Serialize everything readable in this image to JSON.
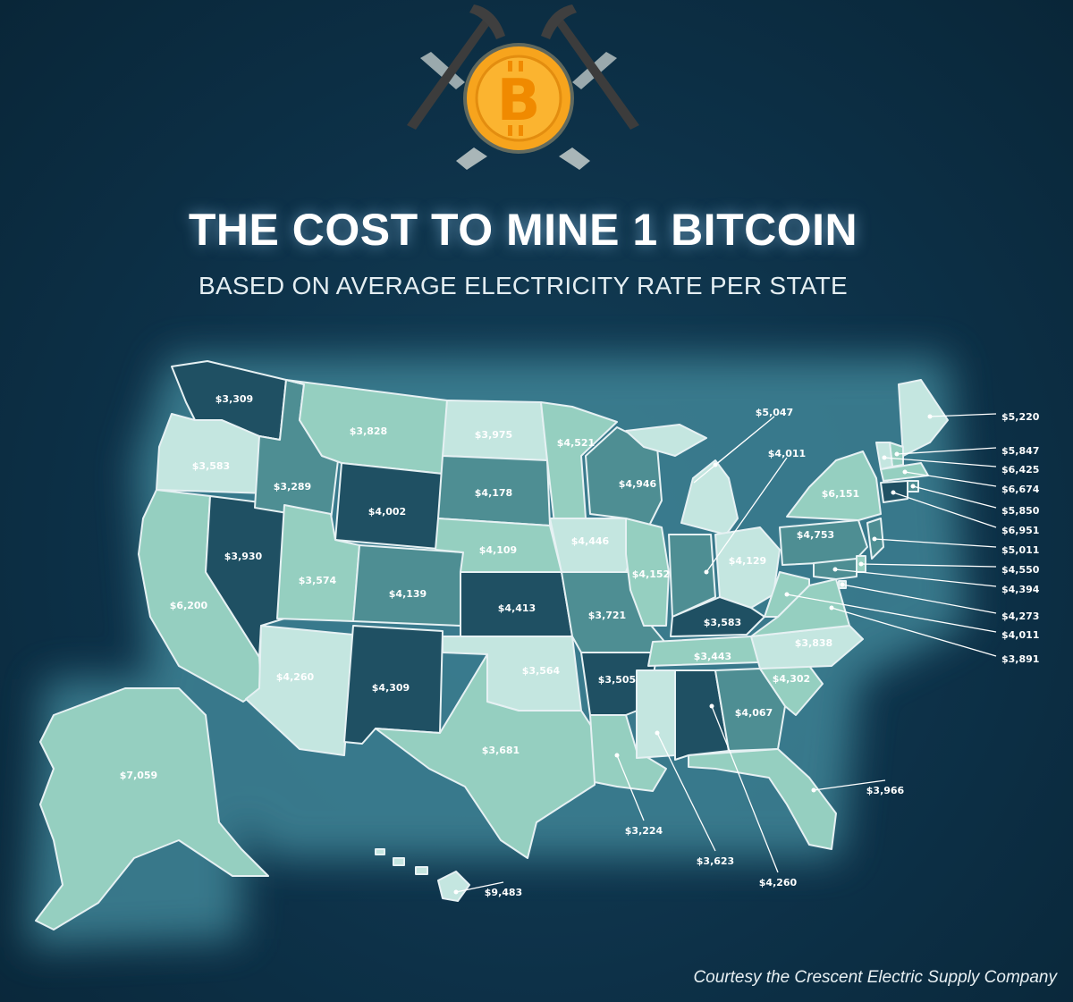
{
  "title": "THE COST TO MINE 1 BITCOIN",
  "subtitle": "BASED ON AVERAGE ELECTRICITY RATE PER STATE",
  "credit": "Courtesy the Crescent Electric Supply Company",
  "colors": {
    "background": "#0d3148",
    "glow": "#3f8597",
    "dark": "#1f5063",
    "medium": "#4e8e93",
    "light": "#95cfc0",
    "lightest": "#c4e6e0",
    "coin": "#f7a41d"
  },
  "icons": [
    "bitcoin-coin-icon",
    "pickaxe-icon"
  ],
  "states": [
    {
      "id": "WA",
      "value": "$3,309"
    },
    {
      "id": "OR",
      "value": "$3,583"
    },
    {
      "id": "CA",
      "value": "$6,200"
    },
    {
      "id": "NV",
      "value": "$3,930"
    },
    {
      "id": "ID",
      "value": "$3,289"
    },
    {
      "id": "MT",
      "value": "$3,828"
    },
    {
      "id": "WY",
      "value": "$4,002"
    },
    {
      "id": "UT",
      "value": "$3,574"
    },
    {
      "id": "AZ",
      "value": "$4,260"
    },
    {
      "id": "CO",
      "value": "$4,139"
    },
    {
      "id": "NM",
      "value": "$4,309"
    },
    {
      "id": "ND",
      "value": "$3,975"
    },
    {
      "id": "SD",
      "value": "$4,178"
    },
    {
      "id": "NE",
      "value": "$4,109"
    },
    {
      "id": "KS",
      "value": "$4,413"
    },
    {
      "id": "OK",
      "value": "$3,564"
    },
    {
      "id": "TX",
      "value": "$3,681"
    },
    {
      "id": "MN",
      "value": "$4,521"
    },
    {
      "id": "IA",
      "value": "$4,446"
    },
    {
      "id": "MO",
      "value": "$3,721"
    },
    {
      "id": "AR",
      "value": "$3,505"
    },
    {
      "id": "LA",
      "value": "$3,224"
    },
    {
      "id": "WI",
      "value": "$4,946"
    },
    {
      "id": "IL",
      "value": "$4,152"
    },
    {
      "id": "MI",
      "value": "$5,047"
    },
    {
      "id": "IN",
      "value": "$4,011"
    },
    {
      "id": "OH",
      "value": "$4,129"
    },
    {
      "id": "KY",
      "value": "$3,583"
    },
    {
      "id": "TN",
      "value": "$3,443"
    },
    {
      "id": "MS",
      "value": "$3,623"
    },
    {
      "id": "AL",
      "value": "$4,260"
    },
    {
      "id": "GA",
      "value": "$4,067"
    },
    {
      "id": "FL",
      "value": "$3,966"
    },
    {
      "id": "SC",
      "value": "$4,302"
    },
    {
      "id": "NC",
      "value": "$3,838"
    },
    {
      "id": "VA",
      "value": "$3,891"
    },
    {
      "id": "WV",
      "value": "$4,011"
    },
    {
      "id": "PA",
      "value": "$4,753"
    },
    {
      "id": "NY",
      "value": "$6,151"
    },
    {
      "id": "ME",
      "value": "$5,220"
    },
    {
      "id": "NH",
      "value": "$5,847"
    },
    {
      "id": "VT",
      "value": "$6,425"
    },
    {
      "id": "MA",
      "value": "$6,674"
    },
    {
      "id": "RI",
      "value": "$5,850"
    },
    {
      "id": "CT",
      "value": "$6,951"
    },
    {
      "id": "NJ",
      "value": "$5,011"
    },
    {
      "id": "DE",
      "value": "$4,550"
    },
    {
      "id": "MD",
      "value": "$4,394"
    },
    {
      "id": "DC",
      "value": "$4,273"
    },
    {
      "id": "AK",
      "value": "$7,059"
    },
    {
      "id": "HI",
      "value": "$9,483"
    }
  ]
}
